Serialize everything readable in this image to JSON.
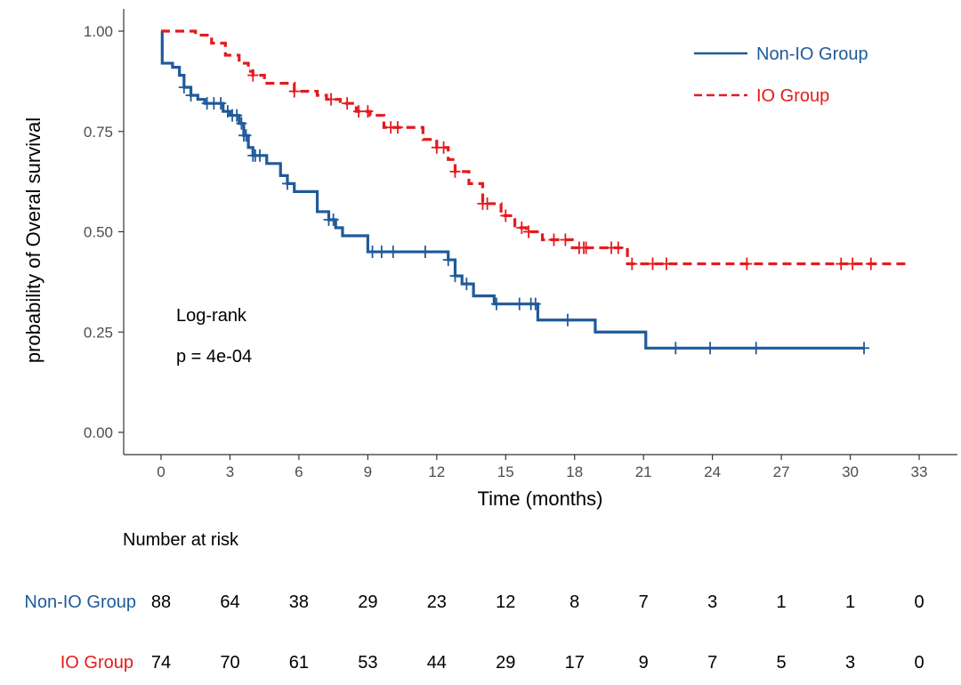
{
  "chart_data": {
    "type": "line",
    "subtype": "kaplan-meier",
    "xlabel": "Time (months)",
    "ylabel": "probability of  Overal survival",
    "xlim": [
      0,
      33
    ],
    "ylim": [
      0,
      1
    ],
    "x_ticks": [
      0,
      3,
      6,
      9,
      12,
      15,
      18,
      21,
      24,
      27,
      30,
      33
    ],
    "y_ticks": [
      "0.00",
      "0.25",
      "0.50",
      "0.75",
      "1.00"
    ],
    "grid": false,
    "legend_position": "top-right",
    "annotations": {
      "test": "Log-rank",
      "p_value": "p = 4e-04"
    },
    "series": [
      {
        "name": "Non-IO Group",
        "color": "#1f5a9a",
        "line_style": "solid",
        "steps": [
          [
            0,
            1.0
          ],
          [
            0.05,
            0.92
          ],
          [
            0.5,
            0.91
          ],
          [
            0.8,
            0.89
          ],
          [
            1.0,
            0.86
          ],
          [
            1.3,
            0.84
          ],
          [
            1.6,
            0.83
          ],
          [
            1.9,
            0.82
          ],
          [
            2.7,
            0.8
          ],
          [
            3.0,
            0.79
          ],
          [
            3.4,
            0.77
          ],
          [
            3.6,
            0.74
          ],
          [
            3.8,
            0.71
          ],
          [
            4.0,
            0.69
          ],
          [
            4.6,
            0.67
          ],
          [
            5.2,
            0.64
          ],
          [
            5.5,
            0.62
          ],
          [
            5.8,
            0.6
          ],
          [
            6.8,
            0.55
          ],
          [
            7.3,
            0.53
          ],
          [
            7.6,
            0.51
          ],
          [
            7.9,
            0.49
          ],
          [
            8.0,
            0.49
          ],
          [
            9.0,
            0.45
          ],
          [
            12.5,
            0.43
          ],
          [
            12.8,
            0.39
          ],
          [
            13.1,
            0.37
          ],
          [
            13.6,
            0.34
          ],
          [
            14.5,
            0.32
          ],
          [
            16.4,
            0.28
          ],
          [
            18.9,
            0.25
          ],
          [
            21.1,
            0.21
          ],
          [
            30.6,
            0.21
          ]
        ],
        "censor_x": [
          1.0,
          1.3,
          2.0,
          2.3,
          2.6,
          2.9,
          3.1,
          3.3,
          3.5,
          3.6,
          3.7,
          4.0,
          4.1,
          4.3,
          5.5,
          7.3,
          7.5,
          9.2,
          9.6,
          10.1,
          11.5,
          12.5,
          12.8,
          13.3,
          14.6,
          15.6,
          16.1,
          16.3,
          17.7,
          22.4,
          23.9,
          25.9,
          30.6
        ]
      },
      {
        "name": "IO Group",
        "color": "#e41a1c",
        "line_style": "dashed",
        "steps": [
          [
            0,
            1.0
          ],
          [
            1.5,
            0.99
          ],
          [
            2.2,
            0.97
          ],
          [
            2.8,
            0.94
          ],
          [
            3.4,
            0.92
          ],
          [
            3.8,
            0.9
          ],
          [
            4.0,
            0.89
          ],
          [
            4.5,
            0.87
          ],
          [
            5.8,
            0.85
          ],
          [
            6.8,
            0.84
          ],
          [
            7.2,
            0.83
          ],
          [
            7.8,
            0.82
          ],
          [
            8.5,
            0.8
          ],
          [
            9.1,
            0.79
          ],
          [
            9.7,
            0.76
          ],
          [
            10.6,
            0.76
          ],
          [
            11.4,
            0.73
          ],
          [
            12.0,
            0.71
          ],
          [
            12.5,
            0.68
          ],
          [
            12.8,
            0.65
          ],
          [
            13.4,
            0.62
          ],
          [
            14.0,
            0.57
          ],
          [
            14.8,
            0.54
          ],
          [
            15.4,
            0.51
          ],
          [
            15.9,
            0.5
          ],
          [
            16.6,
            0.48
          ],
          [
            17.9,
            0.46
          ],
          [
            19.6,
            0.46
          ],
          [
            20.3,
            0.42
          ],
          [
            32.4,
            0.42
          ]
        ],
        "censor_x": [
          4.0,
          5.8,
          7.4,
          8.1,
          8.6,
          9.0,
          10.0,
          10.3,
          12.0,
          12.3,
          12.8,
          14.0,
          14.2,
          15.0,
          15.7,
          16.0,
          17.1,
          17.6,
          18.2,
          18.4,
          18.5,
          19.6,
          19.9,
          20.5,
          21.4,
          22.0,
          25.5,
          29.6,
          30.1,
          30.9
        ]
      }
    ]
  },
  "risk_table": {
    "title": "Number at risk",
    "rows": [
      {
        "label": "Non-IO Group",
        "color": "#1f5a9a",
        "values": [
          "88",
          "64",
          "38",
          "29",
          "23",
          "12",
          "8",
          "7",
          "3",
          "1",
          "1",
          "0"
        ]
      },
      {
        "label": "IO Group",
        "color": "#e41a1c",
        "values": [
          "74",
          "70",
          "61",
          "53",
          "44",
          "29",
          "17",
          "9",
          "7",
          "5",
          "3",
          "0"
        ]
      }
    ]
  }
}
